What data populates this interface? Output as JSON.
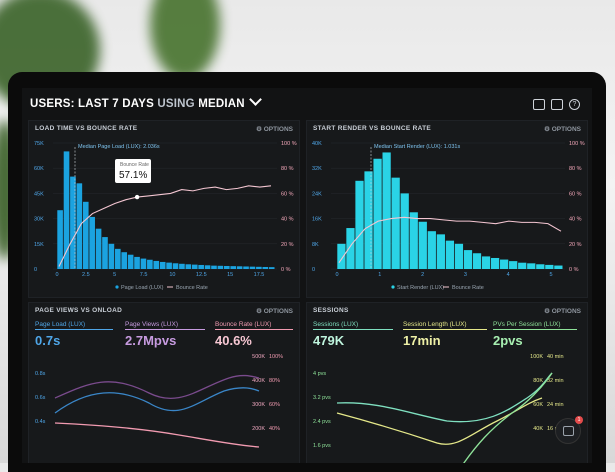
{
  "header": {
    "prefix": "USERS: ",
    "range": "LAST 7 DAYS ",
    "mid": "USING ",
    "stat": "MEDIAN"
  },
  "panels": {
    "load": {
      "title": "LOAD TIME VS BOUNCE RATE",
      "options": "OPTIONS",
      "median_label": "Median Page Load (LUX): 2.036s",
      "tooltip_title": "Bounce Rate",
      "tooltip_value": "57.1%",
      "legend_bars": "Page Load (LUX)",
      "legend_line": "Bounce Rate",
      "y_left": [
        "75K",
        "60K",
        "45K",
        "30K",
        "15K",
        "0"
      ],
      "y_right": [
        "100 %",
        "80 %",
        "60 %",
        "40 %",
        "20 %",
        "0 %"
      ],
      "x_ticks": [
        "0",
        "2.5",
        "5",
        "7.5",
        "10",
        "12.5",
        "15",
        "17.5"
      ]
    },
    "render": {
      "title": "START RENDER VS BOUNCE RATE",
      "options": "OPTIONS",
      "median_label": "Median Start Render (LUX): 1.031s",
      "legend_bars": "Start Render (LUX)",
      "legend_line": "Bounce Rate",
      "y_left": [
        "40K",
        "32K",
        "24K",
        "16K",
        "8K",
        "0"
      ],
      "y_right": [
        "100 %",
        "80 %",
        "60 %",
        "40 %",
        "20 %",
        "0 %"
      ],
      "x_ticks": [
        "0",
        "1",
        "2",
        "3",
        "4",
        "5"
      ]
    },
    "views": {
      "title": "PAGE VIEWS VS ONLOAD",
      "options": "OPTIONS",
      "m1_label": "Page Load (LUX)",
      "m1_value": "0.7s",
      "m2_label": "Page Views (LUX)",
      "m2_value": "2.7Mpvs",
      "m3_label": "Bounce Rate (LUX)",
      "m3_value": "40.6%",
      "y_left": [
        "0.8s",
        "0.6s",
        "0.4s"
      ],
      "y_mid": [
        "500K",
        "400K",
        "300K",
        "200K"
      ],
      "y_right": [
        "100%",
        "80%",
        "60%",
        "40%"
      ]
    },
    "sessions": {
      "title": "SESSIONS",
      "options": "OPTIONS",
      "m1_label": "Sessions (LUX)",
      "m1_value": "479K",
      "m2_label": "Session Length (LUX)",
      "m2_value": "17min",
      "m3_label": "PVs Per Session (LUX)",
      "m3_value": "2pvs",
      "y_left": [
        "4 pvs",
        "3.2 pvs",
        "2.4 pvs",
        "1.6 pvs"
      ],
      "y_mid": [
        "100K",
        "80K",
        "60K",
        "40K"
      ],
      "y_right": [
        "40 min",
        "32 min",
        "24 min",
        "16 min"
      ]
    }
  },
  "chart_data": [
    {
      "type": "bar",
      "title": "LOAD TIME VS BOUNCE RATE",
      "ylim": [
        0,
        75000
      ],
      "series": [
        {
          "name": "Page Load (LUX)",
          "values": [
            35000,
            70000,
            55000,
            51000,
            40000,
            31000,
            24000,
            19000,
            15000,
            12000,
            10000,
            8500,
            7200,
            6200,
            5500,
            4800,
            4200,
            3800,
            3400,
            3100,
            2800,
            2600,
            2400,
            2200,
            2000,
            1900,
            1800,
            1700,
            1600,
            1500,
            1400,
            1300,
            1200,
            1100
          ]
        },
        {
          "name": "Bounce Rate",
          "values": [
            2,
            20,
            36,
            44,
            48,
            52,
            55,
            57.1,
            58,
            59,
            60,
            63,
            62,
            64,
            65,
            63,
            64,
            66,
            65,
            66
          ]
        }
      ]
    },
    {
      "type": "bar",
      "title": "START RENDER VS BOUNCE RATE",
      "ylim": [
        0,
        40000
      ],
      "series": [
        {
          "name": "Start Render (LUX)",
          "values": [
            8000,
            13000,
            28000,
            31000,
            35000,
            37000,
            29000,
            24000,
            18000,
            15000,
            12000,
            11000,
            9000,
            8000,
            6000,
            5000,
            4000,
            3500,
            3000,
            2500,
            2000,
            1800,
            1500,
            1300,
            1100
          ]
        },
        {
          "name": "Bounce Rate",
          "values": [
            5,
            20,
            32,
            38,
            40,
            41,
            40,
            40,
            39,
            38,
            38,
            37,
            36,
            38,
            37,
            37,
            36,
            30
          ]
        }
      ]
    }
  ]
}
